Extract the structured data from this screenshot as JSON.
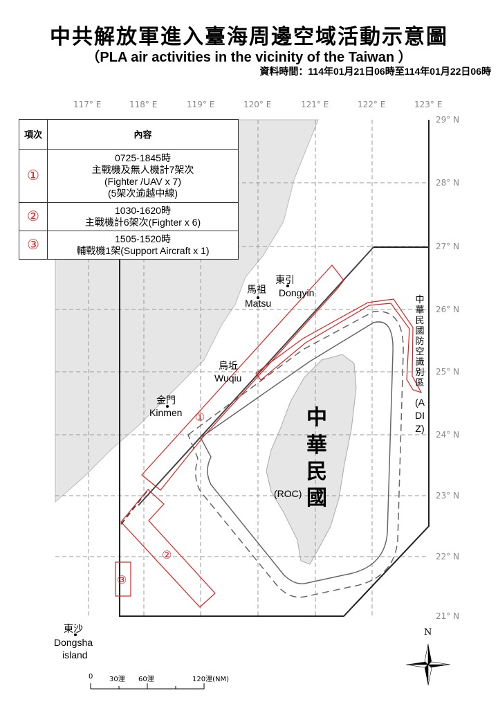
{
  "header": {
    "title": "中共解放軍進入臺海周邊空域活動示意圖",
    "subtitle": "（PLA air activities in the vicinity of the Taiwan ）",
    "datetime": "資料時間：114年01月21日06時至114年01月22日06時"
  },
  "axes": {
    "longitudes": [
      "117° E",
      "118° E",
      "119° E",
      "120° E",
      "121° E",
      "122° E",
      "123° E"
    ],
    "latitudes": [
      "29° N",
      "28° N",
      "27° N",
      "26° N",
      "25° N",
      "24° N",
      "23° N",
      "22° N",
      "21° N"
    ]
  },
  "table": {
    "headers": [
      "項次",
      "內容"
    ],
    "rows": [
      {
        "num": "①",
        "lines": [
          "0725-1845時",
          "主戰機及無人機計7架次",
          "(Fighter /UAV x 7)",
          "(5架次逾越中線)"
        ]
      },
      {
        "num": "②",
        "lines": [
          "1030-1620時",
          "主戰機計6架次(Fighter x 6)"
        ]
      },
      {
        "num": "③",
        "lines": [
          "1505-1520時",
          "輔戰機1架(Support Aircraft x 1)"
        ]
      }
    ]
  },
  "places": {
    "dongyin_zh": "東引",
    "dongyin_en": "Dongyin",
    "matsu_zh": "馬祖",
    "matsu_en": "Matsu",
    "wuqiu_zh": "烏坵",
    "wuqiu_en": "Wuqiu",
    "kinmen_zh": "金門",
    "kinmen_en": "Kinmen",
    "dongsha_zh": "東沙",
    "dongsha_en1": "Dongsha",
    "dongsha_en2": "island",
    "roc_zh": [
      "中",
      "華",
      "民",
      "國"
    ],
    "roc_en": "(ROC)"
  },
  "adiz_label_zh": "中華民國防空識別區",
  "adiz_label_en": "(ADIZ)",
  "zone_labels": [
    "①",
    "②",
    "③"
  ],
  "scale": {
    "labels": [
      "0",
      "30浬",
      "60浬",
      "120浬(NM)"
    ]
  },
  "compass": {
    "north": "N"
  },
  "colors": {
    "activity": "#e02020",
    "land": "#e6e6e6",
    "grid": "#999999"
  }
}
